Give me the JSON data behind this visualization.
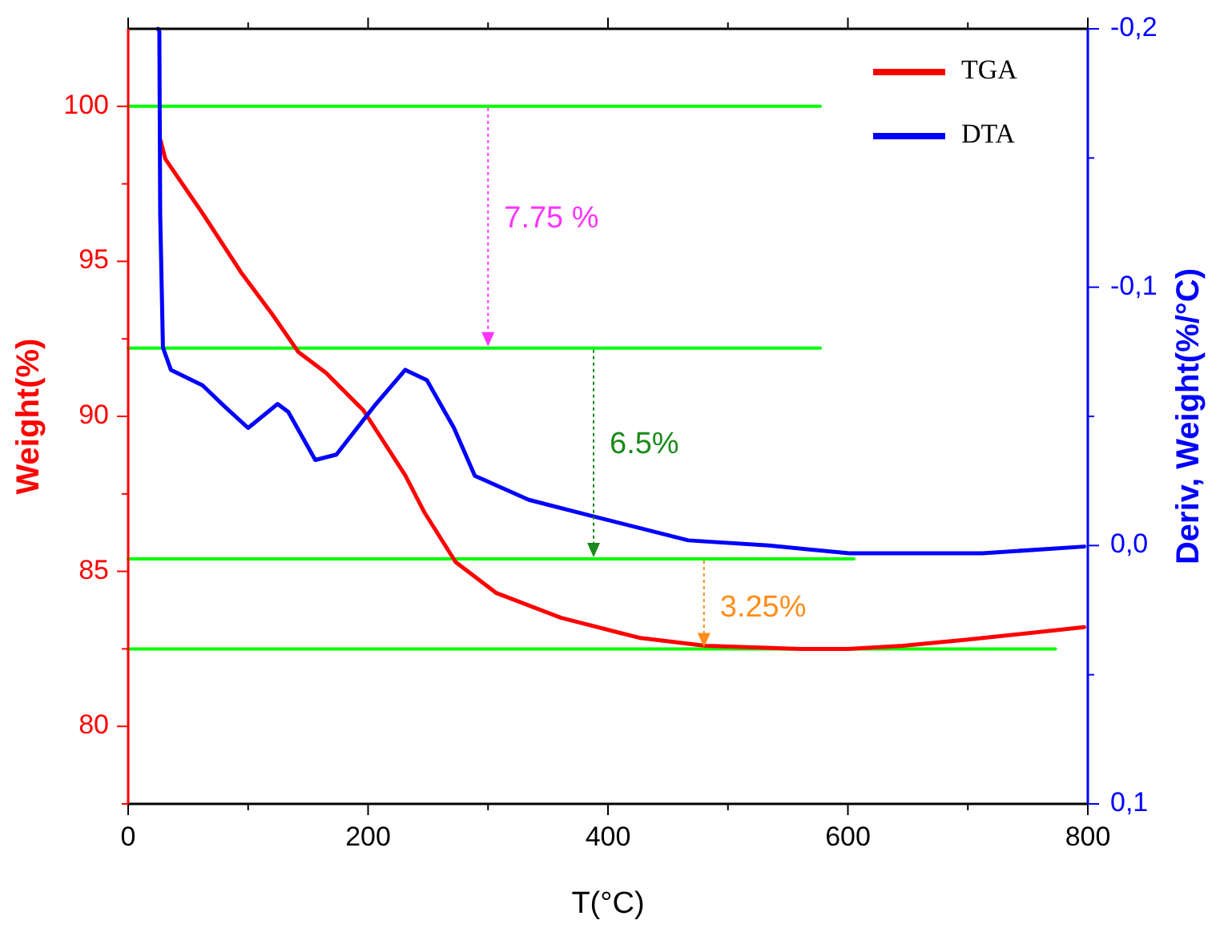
{
  "chart_data": {
    "type": "line",
    "xlabel": "T(°C)",
    "ylabel": "Weight(%)",
    "y2label": "Deriv, Weight(%/°C)",
    "xlim": [
      0,
      800
    ],
    "xticks": [
      0,
      {
        "value": 100,
        "label": null
      },
      200,
      {
        "value": 300,
        "label": null
      },
      400,
      {
        "value": 500,
        "label": null
      },
      600,
      {
        "value": 700,
        "label": null
      },
      800
    ],
    "ylim": [
      77.5,
      102.5
    ],
    "yticks": [
      {
        "value": 77.5,
        "label": null
      },
      80,
      {
        "value": 82.5,
        "label": null
      },
      85,
      {
        "value": 87.5,
        "label": null
      },
      90,
      {
        "value": 92.5,
        "label": null
      },
      95,
      {
        "value": 97.5,
        "label": null
      },
      100
    ],
    "y2lim": [
      0.1,
      -0.2
    ],
    "y2ticks": [
      {
        "value": 0.1,
        "label": "0,1"
      },
      {
        "value": 0.05,
        "label": null
      },
      {
        "value": 0,
        "label": "0,0"
      },
      {
        "value": -0.05,
        "label": null
      },
      {
        "value": -0.1,
        "label": "-0,1"
      },
      {
        "value": -0.15,
        "label": null
      },
      {
        "value": -0.2,
        "label": "-0,2"
      }
    ],
    "legend": "top right",
    "line_style": "solid",
    "series": [
      {
        "color": "#00ff00",
        "x": [
          0,
          577
        ],
        "values": [
          100,
          100
        ]
      },
      {
        "color": "#00ff00",
        "x": [
          0,
          577
        ],
        "values": [
          92.2,
          92.2
        ]
      },
      {
        "color": "#00ff00",
        "x": [
          0,
          605
        ],
        "values": [
          85.4,
          85.4
        ]
      },
      {
        "color": "#00ff00",
        "x": [
          0,
          773
        ],
        "values": [
          82.5,
          82.5
        ]
      },
      {
        "name": "TGA",
        "color": "#ff0000",
        "x": [
          27,
          31,
          62,
          94,
          120,
          142,
          165,
          196,
          231,
          247,
          273,
          307,
          361,
          427,
          481,
          561,
          600,
          646,
          700,
          797
        ],
        "values": [
          98.9,
          98.3,
          96.55,
          94.65,
          93.3,
          92.07,
          91.4,
          90.2,
          88.1,
          86.9,
          85.3,
          84.3,
          83.5,
          82.85,
          82.6,
          82.5,
          82.5,
          82.6,
          82.8,
          83.2
        ]
      },
      {
        "name": "DTA",
        "axis": "y2",
        "color": "#0000ff",
        "x": [
          25,
          26,
          26.7,
          29,
          35.6,
          62,
          80,
          100,
          124.6,
          133.5,
          156,
          173.6,
          205,
          231,
          249,
          271.6,
          289,
          334,
          387,
          467,
          534,
          601,
          712,
          797
        ],
        "values": [
          -0.2,
          -0.199,
          -0.128,
          -0.0766,
          -0.068,
          -0.062,
          -0.054,
          -0.0455,
          -0.0548,
          -0.0517,
          -0.0331,
          -0.0352,
          -0.0539,
          -0.068,
          -0.064,
          -0.0455,
          -0.027,
          -0.0177,
          -0.0114,
          -0.002,
          0,
          0.003,
          0.003,
          0.0004
        ]
      }
    ],
    "annotations": [
      "7.75 %",
      "6.5%",
      "3.25%"
    ]
  }
}
